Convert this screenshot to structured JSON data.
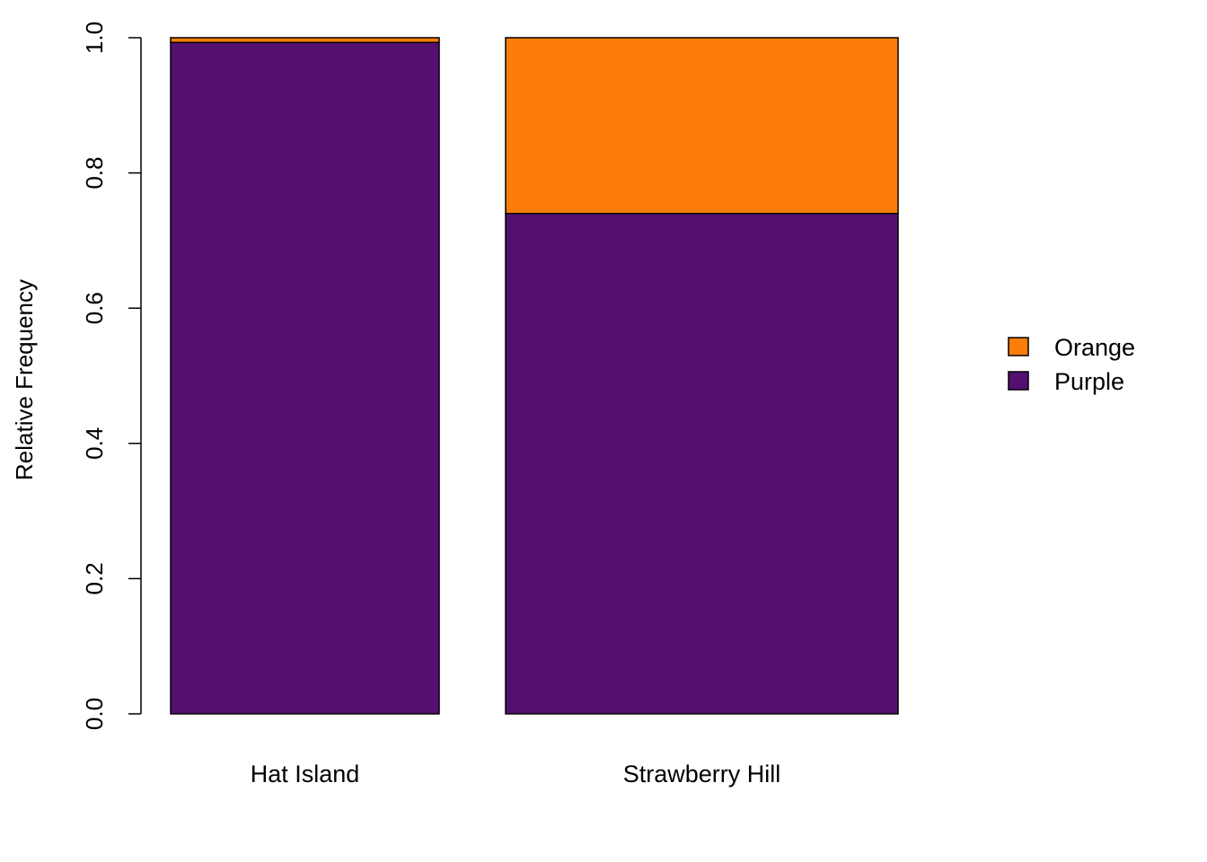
{
  "chart_data": {
    "type": "bar",
    "stacked": true,
    "categories": [
      "Hat Island",
      "Strawberry Hill"
    ],
    "series": [
      {
        "name": "Purple",
        "values": [
          0.993,
          0.74
        ],
        "color": "#541070"
      },
      {
        "name": "Orange",
        "values": [
          0.007,
          0.26
        ],
        "color": "#FD7D0B"
      }
    ],
    "legend": [
      {
        "label": "Orange",
        "color": "#FD7D0B"
      },
      {
        "label": "Purple",
        "color": "#541070"
      }
    ],
    "title": "",
    "xlabel": "",
    "ylabel": "Relative Frequency",
    "ylim": [
      0,
      1.0
    ],
    "yticks": [
      "0.0",
      "0.2",
      "0.4",
      "0.6",
      "0.8",
      "1.0"
    ],
    "grid": false,
    "legend_position": "right"
  }
}
